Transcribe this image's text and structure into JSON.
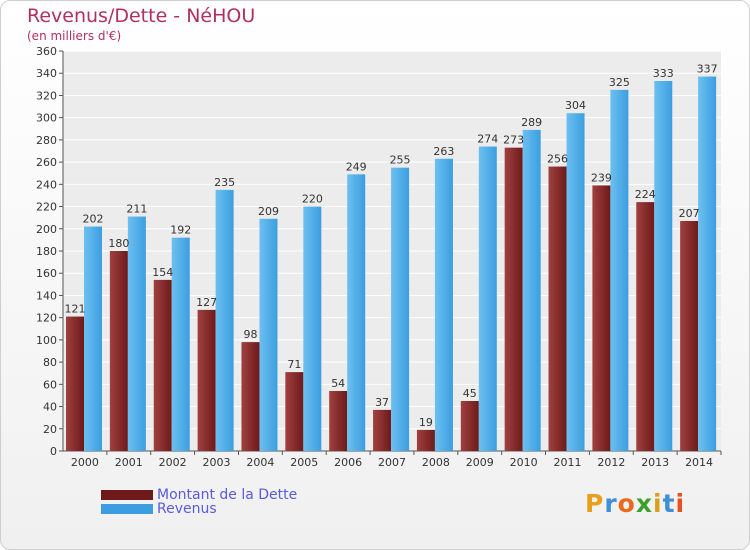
{
  "title": "Revenus/Dette - NéHOU",
  "subtitle": "(en milliers d'€)",
  "logo": {
    "text": "Proxiti",
    "colors": [
      "#e8a01c",
      "#3d8fd8",
      "#e86a1c",
      "#3da02c",
      "#d8a01c",
      "#3d8fd8",
      "#e8501c"
    ]
  },
  "colors": {
    "dette": "#6e1a1a",
    "dette_light": "#a04040",
    "revenus": "#3c9ee0",
    "revenus_light": "#6cc0f0"
  },
  "chart_data": {
    "type": "bar",
    "categories": [
      "2000",
      "2001",
      "2002",
      "2003",
      "2004",
      "2005",
      "2006",
      "2007",
      "2008",
      "2009",
      "2010",
      "2011",
      "2012",
      "2013",
      "2014"
    ],
    "series": [
      {
        "name": "Montant de la Dette",
        "values": [
          121,
          180,
          154,
          127,
          98,
          71,
          54,
          37,
          19,
          45,
          273,
          256,
          239,
          224,
          207
        ]
      },
      {
        "name": "Revenus",
        "values": [
          202,
          211,
          192,
          235,
          209,
          220,
          249,
          255,
          263,
          274,
          289,
          304,
          325,
          333,
          337
        ]
      }
    ],
    "ylim": [
      0,
      360
    ],
    "yticks": [
      0,
      20,
      40,
      60,
      80,
      100,
      120,
      140,
      160,
      180,
      200,
      220,
      240,
      260,
      280,
      300,
      320,
      340,
      360
    ],
    "grid": true,
    "legend": "bottom-left"
  }
}
